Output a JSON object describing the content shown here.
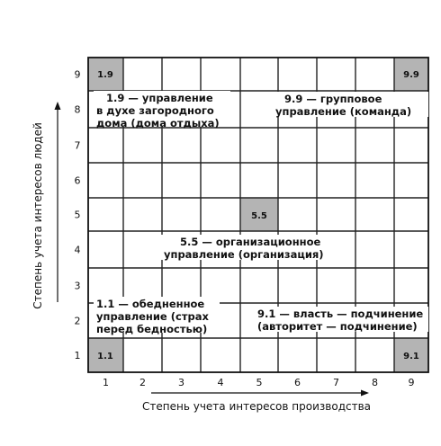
{
  "grid": {
    "x_ticks": [
      "1",
      "2",
      "3",
      "4",
      "5",
      "6",
      "7",
      "8",
      "9"
    ],
    "y_ticks": [
      "1",
      "2",
      "3",
      "4",
      "5",
      "6",
      "7",
      "8",
      "9"
    ],
    "x_axis_title": "Степень учета интересов производства",
    "y_axis_title": "Степень учета интересов людей"
  },
  "shaded_cells": [
    {
      "id": "cell-1-9",
      "label": "1.9"
    },
    {
      "id": "cell-9-9",
      "label": "9.9"
    },
    {
      "id": "cell-5-5",
      "label": "5.5"
    },
    {
      "id": "cell-1-1",
      "label": "1.1"
    },
    {
      "id": "cell-9-1",
      "label": "9.1"
    }
  ],
  "regions": [
    {
      "id": "style-1-9",
      "lines": [
        "1.9 — управление",
        "в духе загородного",
        "дома (дома отдыха)"
      ]
    },
    {
      "id": "style-9-9",
      "lines": [
        "9.9 — групповое",
        "управление (команда)"
      ]
    },
    {
      "id": "style-5-5",
      "lines": [
        "5.5 — организационное",
        "управление (организация)"
      ]
    },
    {
      "id": "style-1-1",
      "lines": [
        "1.1 — обедненное",
        "управление (страх",
        "перед бедностью)"
      ]
    },
    {
      "id": "style-9-1",
      "lines": [
        "9.1 — власть — подчинение",
        "(авторитет — подчинение)"
      ]
    }
  ],
  "colors": {
    "shade": "#b4b4b4",
    "line": "#222222"
  }
}
